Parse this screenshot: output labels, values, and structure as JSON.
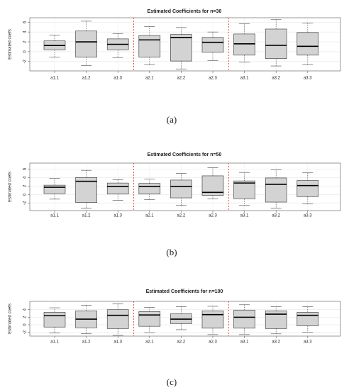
{
  "chart_data": [
    {
      "type": "box",
      "title": "Estimated Coefficients for n=30",
      "caption": "(a)",
      "y_label": "Estimated coefs",
      "categories": [
        "a1.1",
        "a1.2",
        "a1.3",
        "a2.1",
        "a2.2",
        "a2.3",
        "a3.1",
        "a3.2",
        "a3.3"
      ],
      "color": "#d3d3d3",
      "whisker_low": [
        -1.1,
        -2.8,
        -1.2,
        -2.6,
        -3.5,
        -1.8,
        -2.1,
        -2.9,
        -2.6
      ],
      "q1": [
        0.4,
        -1.1,
        0.4,
        -1.1,
        -1.9,
        -0.1,
        -0.7,
        -1.4,
        -0.7
      ],
      "median": [
        1.25,
        2.0,
        1.5,
        2.4,
        2.9,
        1.9,
        1.6,
        1.3,
        1.1
      ],
      "q3": [
        2.2,
        4.2,
        2.6,
        3.3,
        3.5,
        2.9,
        3.6,
        4.6,
        3.9
      ],
      "whisker_high": [
        3.4,
        6.2,
        3.7,
        5.1,
        4.9,
        4.0,
        5.7,
        6.5,
        5.8
      ],
      "ylim": [
        -3.9,
        6.9
      ],
      "yticks": [
        -2,
        0,
        2,
        4,
        6
      ],
      "grid": true
    },
    {
      "type": "box",
      "title": "Estimated Coefficients for n=50",
      "caption": "(b)",
      "y_label": "Estimated coefs",
      "categories": [
        "a1.1",
        "a1.2",
        "a1.3",
        "a2.1",
        "a2.2",
        "a2.3",
        "a3.1",
        "a3.2",
        "a3.3"
      ],
      "color": "#d3d3d3",
      "whisker_low": [
        -1.1,
        -3.2,
        -1.4,
        -1.2,
        -2.6,
        -1.0,
        -2.6,
        -3.2,
        -2.2
      ],
      "q1": [
        0.2,
        -1.9,
        0.1,
        0.1,
        -0.8,
        -0.2,
        -1.0,
        -1.8,
        -0.5
      ],
      "median": [
        1.7,
        3.1,
        1.9,
        1.9,
        1.9,
        0.5,
        2.7,
        2.4,
        2.1
      ],
      "q3": [
        2.2,
        4.0,
        2.7,
        2.6,
        3.4,
        4.4,
        3.2,
        3.9,
        3.3
      ],
      "whisker_high": [
        3.8,
        5.7,
        3.5,
        3.6,
        5.0,
        6.3,
        5.2,
        5.8,
        5.1
      ],
      "ylim": [
        -3.8,
        7.4
      ],
      "yticks": [
        -2,
        0,
        2,
        4,
        6
      ],
      "grid": true
    },
    {
      "type": "box",
      "title": "Estimated Coefficients for n=100",
      "caption": "(c)",
      "y_label": "Estimated coefs",
      "categories": [
        "a1.1",
        "a1.2",
        "a1.3",
        "a2.1",
        "a2.2",
        "a2.3",
        "a3.1",
        "a3.2",
        "a3.3"
      ],
      "color": "#d3d3d3",
      "whisker_low": [
        -2.2,
        -2.3,
        -2.8,
        -2.1,
        -1.3,
        -2.6,
        -2.6,
        -2.4,
        -2.0
      ],
      "q1": [
        -0.6,
        -0.8,
        -1.0,
        -0.4,
        0.3,
        -0.9,
        -0.9,
        -1.0,
        -0.3
      ],
      "median": [
        2.4,
        1.5,
        2.5,
        2.6,
        1.5,
        2.7,
        2.0,
        2.8,
        2.5
      ],
      "q3": [
        3.3,
        3.7,
        4.0,
        3.5,
        2.9,
        3.7,
        3.9,
        3.7,
        3.3
      ],
      "whisker_high": [
        4.5,
        5.2,
        5.5,
        4.6,
        4.8,
        4.9,
        5.3,
        4.8,
        4.8
      ],
      "ylim": [
        -3.0,
        6.2
      ],
      "yticks": [
        -2,
        0,
        2,
        4
      ],
      "grid": true
    }
  ]
}
